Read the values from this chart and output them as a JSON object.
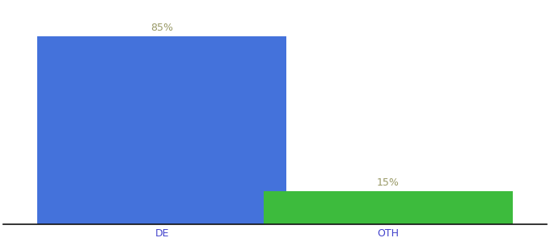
{
  "categories": [
    "DE",
    "OTH"
  ],
  "values": [
    85,
    15
  ],
  "bar_colors": [
    "#4472db",
    "#3dbb3d"
  ],
  "value_labels": [
    "85%",
    "15%"
  ],
  "label_color": "#999966",
  "title_fontsize": 9.5,
  "xlabel": "",
  "ylabel": "",
  "ylim": [
    0,
    100
  ],
  "background_color": "#ffffff",
  "bar_width": 0.55,
  "label_fontsize": 9,
  "tick_fontsize": 9,
  "tick_color": "#4444cc",
  "x_positions": [
    0.3,
    0.8
  ]
}
